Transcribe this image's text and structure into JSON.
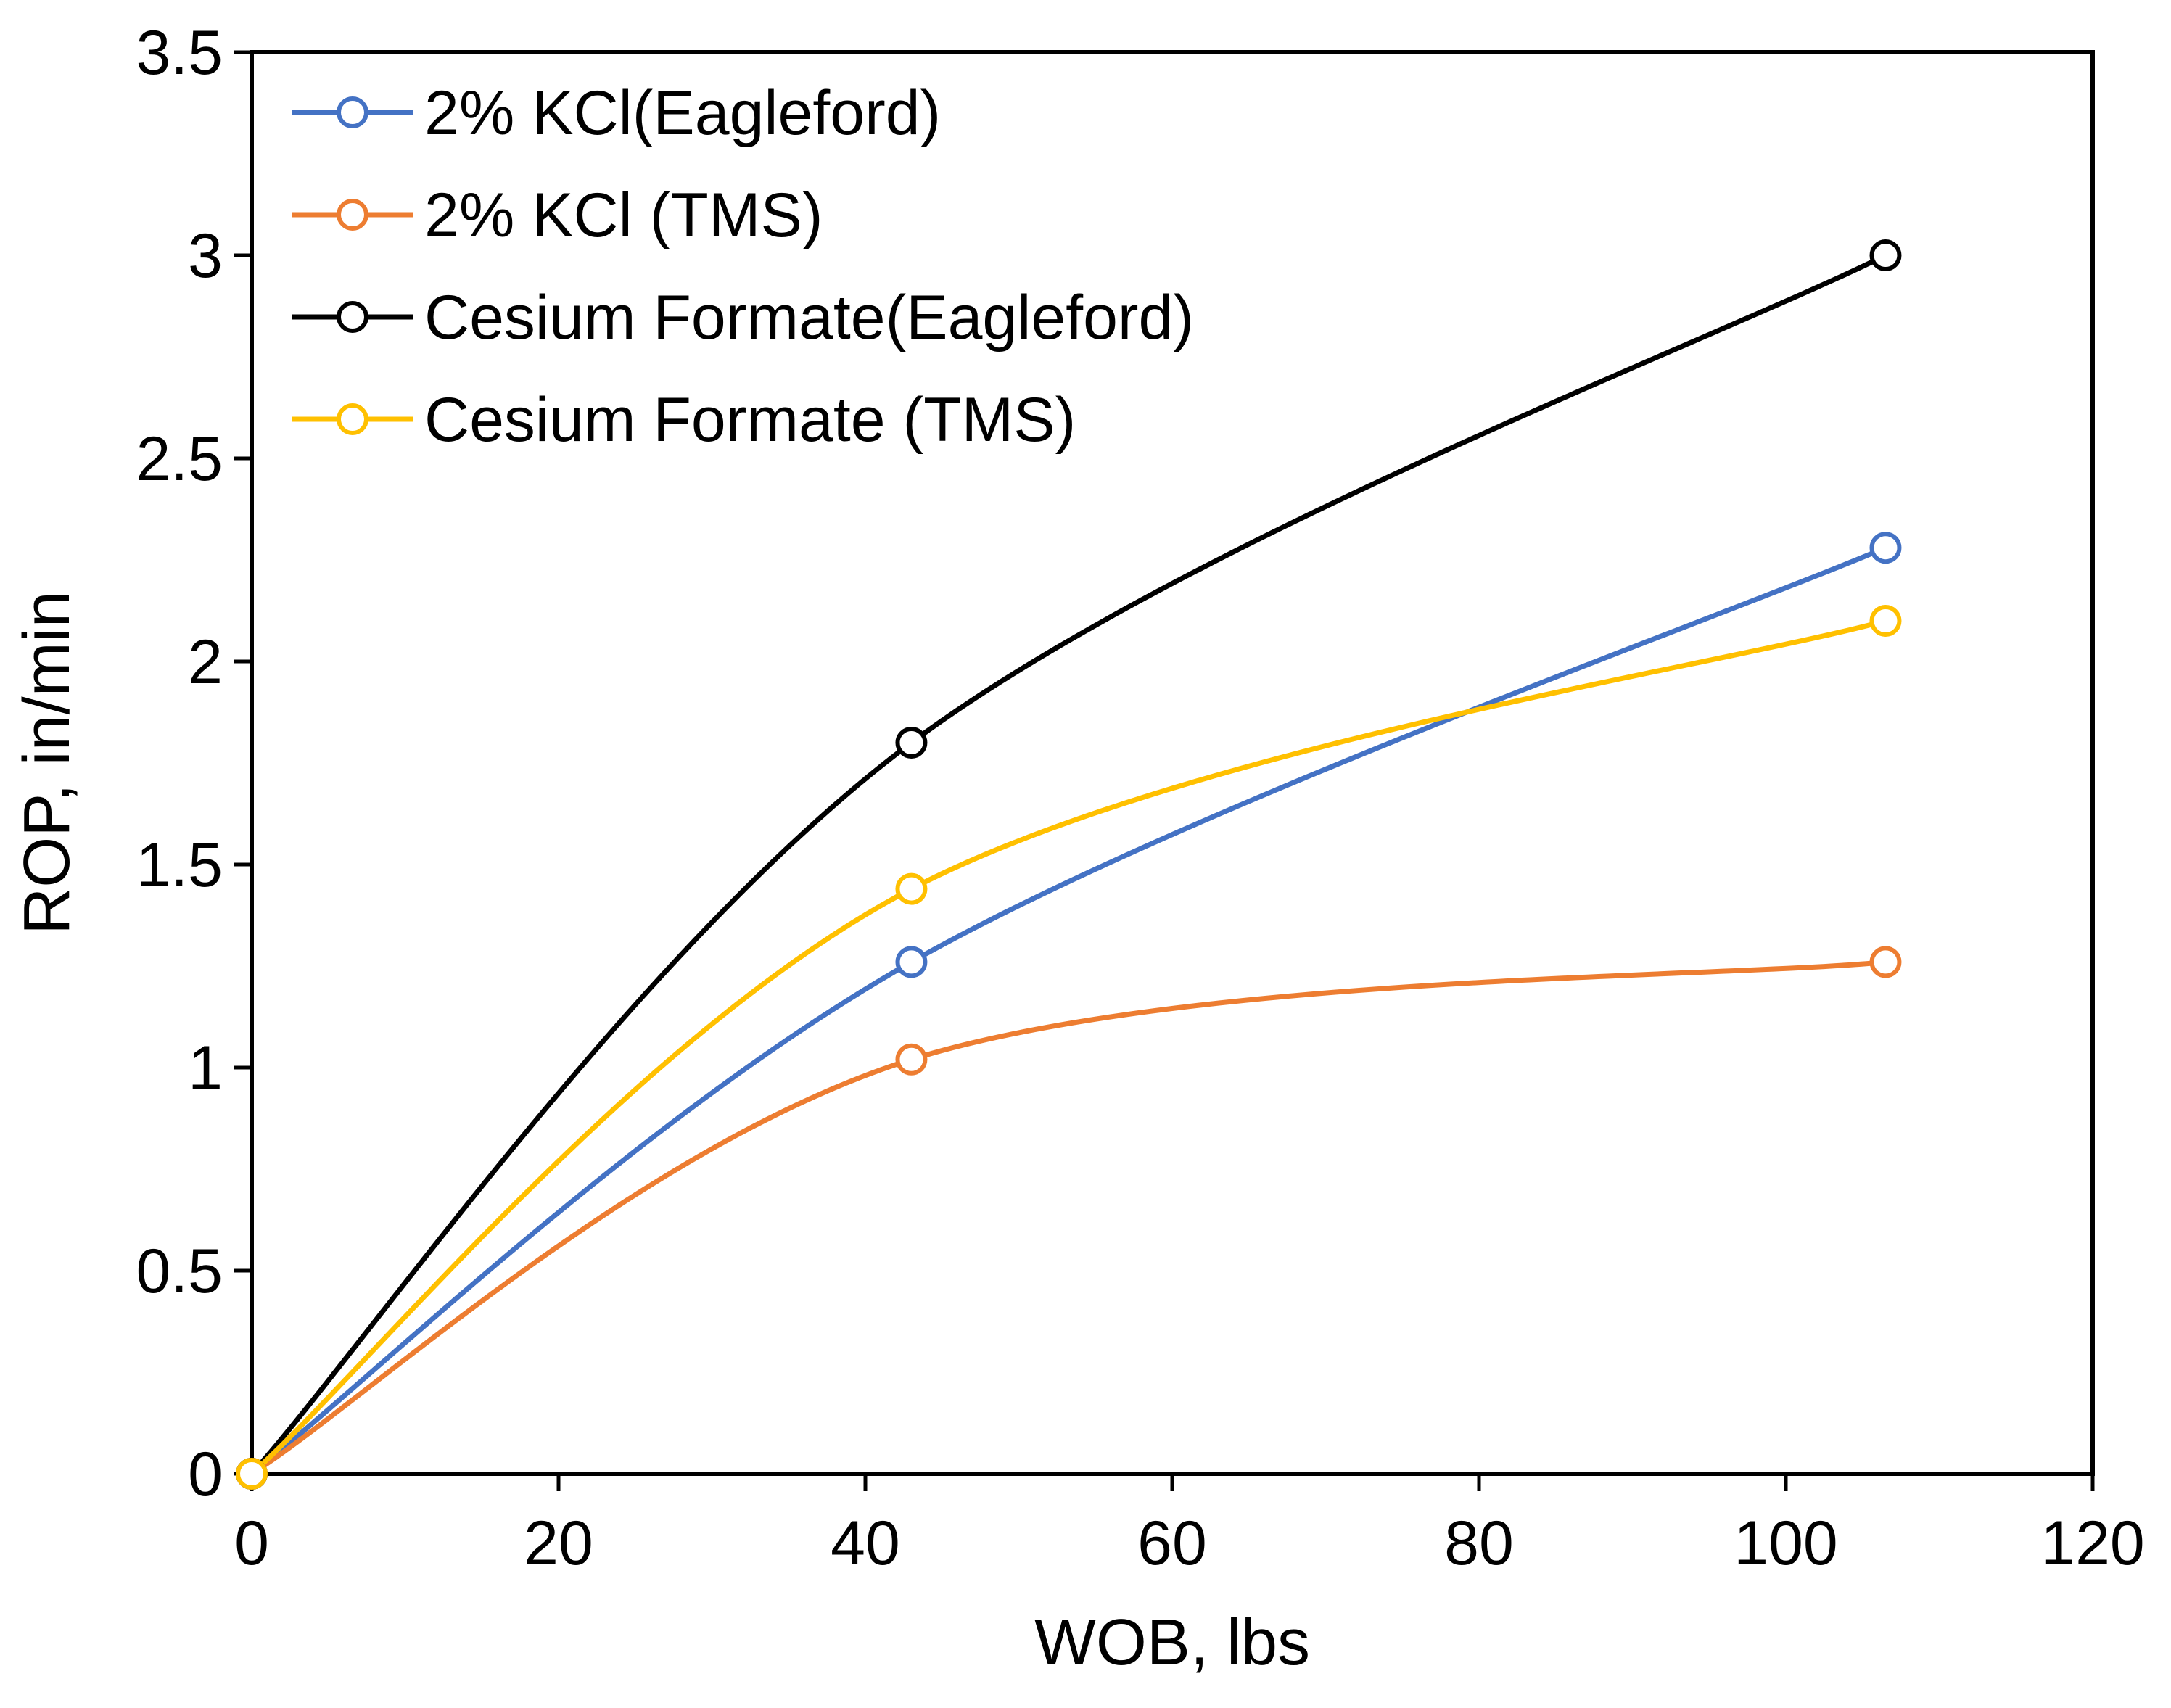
{
  "chart_data": {
    "type": "line",
    "title": "",
    "xlabel": "WOB, lbs",
    "ylabel": "ROP, in/min",
    "xlim": [
      0,
      120
    ],
    "ylim": [
      0,
      3.5
    ],
    "x_ticks": [
      "0",
      "20",
      "40",
      "60",
      "80",
      "100",
      "120"
    ],
    "y_ticks": [
      "0",
      "0.5",
      "1",
      "1.5",
      "2",
      "2.5",
      "3",
      "3.5"
    ],
    "grid": false,
    "legend_position": "top-left",
    "smooth": true,
    "series": [
      {
        "name": "2% KCl(Eagleford)",
        "color": "#4472C4",
        "x": [
          0,
          43,
          106.5
        ],
        "y": [
          0,
          1.26,
          2.28
        ]
      },
      {
        "name": "2% KCl (TMS)",
        "color": "#ED7D31",
        "x": [
          0,
          43,
          106.5
        ],
        "y": [
          0,
          1.02,
          1.26
        ]
      },
      {
        "name": "Cesium Formate(Eagleford)",
        "color": "#000000",
        "x": [
          0,
          43,
          106.5
        ],
        "y": [
          0,
          1.8,
          3.0
        ]
      },
      {
        "name": "Cesium Formate (TMS)",
        "color": "#FFC000",
        "x": [
          0,
          43,
          106.5
        ],
        "y": [
          0,
          1.44,
          2.1
        ]
      }
    ]
  }
}
